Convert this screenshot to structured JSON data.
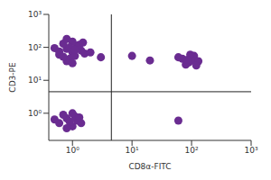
{
  "chart_data": {
    "type": "scatter",
    "x_label": "CD8α-FITC",
    "y_label": "CD3-PE",
    "color": "#6a2c91",
    "log": true,
    "xlim": [
      0.4,
      1000
    ],
    "ylim": [
      0.15,
      1000
    ],
    "xticks": [
      {
        "value": 1,
        "label": "10⁰"
      },
      {
        "value": 10,
        "label": "10¹"
      },
      {
        "value": 100,
        "label": "10²"
      },
      {
        "value": 1000,
        "label": "10³"
      }
    ],
    "yticks": [
      {
        "value": 1,
        "label": "10⁰"
      },
      {
        "value": 10,
        "label": "10¹"
      },
      {
        "value": 100,
        "label": "10²"
      },
      {
        "value": 1000,
        "label": "10³"
      }
    ],
    "quadrant": {
      "x": 4.5,
      "y": 4.5
    },
    "x": [
      0.6,
      0.8,
      1.0,
      1.2,
      0.9,
      0.7,
      1.1,
      1.4,
      0.5,
      1.0,
      0.8,
      1.3,
      0.6,
      1.6,
      0.9,
      1.1,
      0.7,
      1.5,
      1.0,
      0.8,
      2.0,
      3.0,
      70,
      90,
      110,
      80,
      100,
      130,
      60,
      95,
      120,
      85,
      20,
      10,
      0.6,
      0.8,
      1.0,
      1.2,
      0.7,
      0.9,
      1.1,
      1.4,
      0.5,
      1.0,
      0.8,
      1.3,
      60
    ],
    "values": [
      60,
      90,
      70,
      110,
      45,
      130,
      55,
      80,
      95,
      150,
      38,
      120,
      75,
      65,
      100,
      85,
      52,
      140,
      33,
      180,
      70,
      50,
      45,
      35,
      55,
      30,
      40,
      38,
      50,
      60,
      28,
      42,
      40,
      55,
      0.5,
      0.7,
      0.4,
      0.6,
      0.9,
      0.55,
      0.8,
      0.5,
      0.65,
      1.0,
      0.35,
      0.75,
      0.6
    ]
  }
}
